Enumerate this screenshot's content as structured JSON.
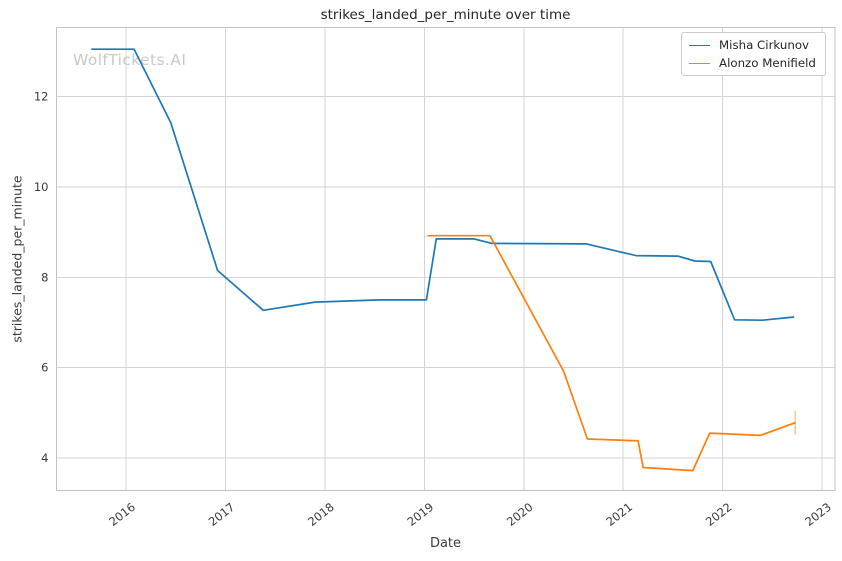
{
  "chart_data": {
    "type": "line",
    "title": "strikes_landed_per_minute over time",
    "xlabel": "Date",
    "ylabel": "strikes_landed_per_minute",
    "watermark": "WolfTickets.AI",
    "legend_position": "upper right",
    "grid": true,
    "background_color": "#ffffff",
    "grid_color": "#d4d4d4",
    "spine_color": "#c2c2c2",
    "text_color": "#3b3b3b",
    "xlim": [
      2015.3,
      2023.13
    ],
    "ylim": [
      3.28,
      13.53
    ],
    "x_ticks": [
      2016,
      2017,
      2018,
      2019,
      2020,
      2021,
      2022,
      2023
    ],
    "y_ticks": [
      4,
      6,
      8,
      10,
      12
    ],
    "series": [
      {
        "name": "Misha Cirkunov",
        "color": "#1f77b4",
        "points": [
          [
            2015.65,
            13.05
          ],
          [
            2016.08,
            13.05
          ],
          [
            2016.45,
            11.42
          ],
          [
            2016.92,
            8.15
          ],
          [
            2017.38,
            7.27
          ],
          [
            2017.9,
            7.45
          ],
          [
            2018.55,
            7.5
          ],
          [
            2019.02,
            7.5
          ],
          [
            2019.12,
            8.85
          ],
          [
            2019.5,
            8.85
          ],
          [
            2019.68,
            8.75
          ],
          [
            2020.63,
            8.74
          ],
          [
            2021.13,
            8.48
          ],
          [
            2021.55,
            8.47
          ],
          [
            2021.72,
            8.36
          ],
          [
            2021.88,
            8.35
          ],
          [
            2022.12,
            7.06
          ],
          [
            2022.4,
            7.05
          ],
          [
            2022.72,
            7.12
          ]
        ]
      },
      {
        "name": "Alonzo Menifield",
        "color": "#ff7f0e",
        "points": [
          [
            2019.03,
            8.92
          ],
          [
            2019.66,
            8.92
          ],
          [
            2020.4,
            5.92
          ],
          [
            2020.64,
            4.42
          ],
          [
            2021.15,
            4.38
          ],
          [
            2021.2,
            3.79
          ],
          [
            2021.7,
            3.72
          ],
          [
            2021.87,
            4.55
          ],
          [
            2022.38,
            4.5
          ],
          [
            2022.73,
            4.78
          ]
        ],
        "last_point_error": {
          "x": 2022.73,
          "y_low": 4.52,
          "y_high": 5.05
        }
      }
    ]
  }
}
